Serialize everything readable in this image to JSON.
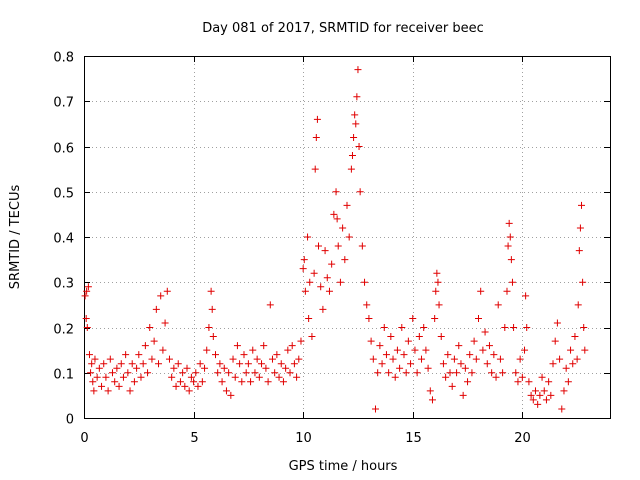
{
  "chart_data": {
    "type": "scatter",
    "title": "Day 081 of 2017, SRMTID for receiver beec",
    "xlabel": "GPS time / hours",
    "ylabel": "SRMTID / TECUs",
    "xlim": [
      0,
      24
    ],
    "ylim": [
      0,
      0.8
    ],
    "xticks": [
      0,
      5,
      10,
      15,
      20
    ],
    "yticks": [
      0,
      0.1,
      0.2,
      0.3,
      0.4,
      0.5,
      0.6,
      0.7,
      0.8
    ],
    "xtick_labels": [
      "0",
      "5",
      "10",
      "15",
      "20"
    ],
    "ytick_labels": [
      "0",
      "0.1",
      "0.2",
      "0.3",
      "0.4",
      "0.5",
      "0.6",
      "0.7",
      "0.8"
    ],
    "grid": true,
    "marker": "+",
    "color": "#e00000",
    "series": [
      {
        "name": "SRMTID",
        "points": [
          [
            0.05,
            0.27
          ],
          [
            0.1,
            0.22
          ],
          [
            0.12,
            0.28
          ],
          [
            0.15,
            0.2
          ],
          [
            0.2,
            0.29
          ],
          [
            0.25,
            0.14
          ],
          [
            0.3,
            0.1
          ],
          [
            0.35,
            0.12
          ],
          [
            0.4,
            0.08
          ],
          [
            0.45,
            0.06
          ],
          [
            0.5,
            0.13
          ],
          [
            0.6,
            0.09
          ],
          [
            0.7,
            0.11
          ],
          [
            0.8,
            0.07
          ],
          [
            0.9,
            0.12
          ],
          [
            1.0,
            0.09
          ],
          [
            1.1,
            0.06
          ],
          [
            1.2,
            0.13
          ],
          [
            1.3,
            0.1
          ],
          [
            1.4,
            0.08
          ],
          [
            1.5,
            0.11
          ],
          [
            1.6,
            0.07
          ],
          [
            1.7,
            0.12
          ],
          [
            1.8,
            0.09
          ],
          [
            1.9,
            0.14
          ],
          [
            2.0,
            0.1
          ],
          [
            2.1,
            0.06
          ],
          [
            2.2,
            0.12
          ],
          [
            2.3,
            0.08
          ],
          [
            2.4,
            0.11
          ],
          [
            2.5,
            0.14
          ],
          [
            2.6,
            0.09
          ],
          [
            2.7,
            0.12
          ],
          [
            2.8,
            0.16
          ],
          [
            2.9,
            0.1
          ],
          [
            3.0,
            0.2
          ],
          [
            3.1,
            0.13
          ],
          [
            3.2,
            0.17
          ],
          [
            3.3,
            0.24
          ],
          [
            3.4,
            0.12
          ],
          [
            3.5,
            0.27
          ],
          [
            3.6,
            0.15
          ],
          [
            3.7,
            0.21
          ],
          [
            3.8,
            0.28
          ],
          [
            3.9,
            0.13
          ],
          [
            4.0,
            0.09
          ],
          [
            4.1,
            0.11
          ],
          [
            4.2,
            0.07
          ],
          [
            4.3,
            0.12
          ],
          [
            4.4,
            0.08
          ],
          [
            4.5,
            0.1
          ],
          [
            4.6,
            0.07
          ],
          [
            4.7,
            0.11
          ],
          [
            4.8,
            0.06
          ],
          [
            4.9,
            0.09
          ],
          [
            5.0,
            0.08
          ],
          [
            5.1,
            0.1
          ],
          [
            5.2,
            0.07
          ],
          [
            5.3,
            0.12
          ],
          [
            5.4,
            0.08
          ],
          [
            5.5,
            0.11
          ],
          [
            5.6,
            0.15
          ],
          [
            5.7,
            0.2
          ],
          [
            5.8,
            0.28
          ],
          [
            5.85,
            0.24
          ],
          [
            5.9,
            0.18
          ],
          [
            6.0,
            0.14
          ],
          [
            6.1,
            0.1
          ],
          [
            6.2,
            0.12
          ],
          [
            6.3,
            0.08
          ],
          [
            6.4,
            0.11
          ],
          [
            6.5,
            0.06
          ],
          [
            6.6,
            0.1
          ],
          [
            6.7,
            0.05
          ],
          [
            6.8,
            0.13
          ],
          [
            6.9,
            0.09
          ],
          [
            7.0,
            0.16
          ],
          [
            7.1,
            0.12
          ],
          [
            7.2,
            0.08
          ],
          [
            7.3,
            0.14
          ],
          [
            7.4,
            0.1
          ],
          [
            7.5,
            0.12
          ],
          [
            7.6,
            0.08
          ],
          [
            7.7,
            0.15
          ],
          [
            7.8,
            0.1
          ],
          [
            7.9,
            0.13
          ],
          [
            8.0,
            0.09
          ],
          [
            8.1,
            0.12
          ],
          [
            8.2,
            0.16
          ],
          [
            8.3,
            0.11
          ],
          [
            8.4,
            0.08
          ],
          [
            8.5,
            0.25
          ],
          [
            8.6,
            0.13
          ],
          [
            8.7,
            0.1
          ],
          [
            8.8,
            0.14
          ],
          [
            8.9,
            0.09
          ],
          [
            9.0,
            0.12
          ],
          [
            9.1,
            0.08
          ],
          [
            9.2,
            0.11
          ],
          [
            9.3,
            0.15
          ],
          [
            9.4,
            0.1
          ],
          [
            9.5,
            0.16
          ],
          [
            9.6,
            0.12
          ],
          [
            9.7,
            0.09
          ],
          [
            9.8,
            0.13
          ],
          [
            9.9,
            0.17
          ],
          [
            10.0,
            0.33
          ],
          [
            10.05,
            0.35
          ],
          [
            10.1,
            0.28
          ],
          [
            10.2,
            0.4
          ],
          [
            10.25,
            0.22
          ],
          [
            10.3,
            0.3
          ],
          [
            10.4,
            0.18
          ],
          [
            10.5,
            0.32
          ],
          [
            10.55,
            0.55
          ],
          [
            10.6,
            0.62
          ],
          [
            10.65,
            0.66
          ],
          [
            10.7,
            0.38
          ],
          [
            10.8,
            0.29
          ],
          [
            10.9,
            0.24
          ],
          [
            11.0,
            0.37
          ],
          [
            11.1,
            0.31
          ],
          [
            11.2,
            0.28
          ],
          [
            11.3,
            0.34
          ],
          [
            11.4,
            0.45
          ],
          [
            11.5,
            0.5
          ],
          [
            11.55,
            0.44
          ],
          [
            11.6,
            0.38
          ],
          [
            11.7,
            0.3
          ],
          [
            11.8,
            0.42
          ],
          [
            11.9,
            0.35
          ],
          [
            12.0,
            0.47
          ],
          [
            12.1,
            0.4
          ],
          [
            12.2,
            0.55
          ],
          [
            12.25,
            0.58
          ],
          [
            12.3,
            0.62
          ],
          [
            12.35,
            0.67
          ],
          [
            12.4,
            0.65
          ],
          [
            12.45,
            0.71
          ],
          [
            12.5,
            0.77
          ],
          [
            12.55,
            0.6
          ],
          [
            12.6,
            0.5
          ],
          [
            12.7,
            0.38
          ],
          [
            12.8,
            0.3
          ],
          [
            12.9,
            0.25
          ],
          [
            13.0,
            0.22
          ],
          [
            13.1,
            0.17
          ],
          [
            13.2,
            0.13
          ],
          [
            13.3,
            0.02
          ],
          [
            13.4,
            0.1
          ],
          [
            13.5,
            0.16
          ],
          [
            13.6,
            0.12
          ],
          [
            13.7,
            0.2
          ],
          [
            13.8,
            0.14
          ],
          [
            13.9,
            0.1
          ],
          [
            14.0,
            0.18
          ],
          [
            14.1,
            0.13
          ],
          [
            14.2,
            0.09
          ],
          [
            14.3,
            0.15
          ],
          [
            14.4,
            0.11
          ],
          [
            14.5,
            0.2
          ],
          [
            14.6,
            0.14
          ],
          [
            14.7,
            0.1
          ],
          [
            14.8,
            0.17
          ],
          [
            14.9,
            0.12
          ],
          [
            15.0,
            0.22
          ],
          [
            15.1,
            0.15
          ],
          [
            15.2,
            0.1
          ],
          [
            15.3,
            0.18
          ],
          [
            15.4,
            0.13
          ],
          [
            15.5,
            0.2
          ],
          [
            15.6,
            0.15
          ],
          [
            15.7,
            0.11
          ],
          [
            15.8,
            0.06
          ],
          [
            15.9,
            0.04
          ],
          [
            16.0,
            0.22
          ],
          [
            16.05,
            0.28
          ],
          [
            16.1,
            0.32
          ],
          [
            16.15,
            0.3
          ],
          [
            16.2,
            0.25
          ],
          [
            16.3,
            0.18
          ],
          [
            16.4,
            0.12
          ],
          [
            16.5,
            0.09
          ],
          [
            16.6,
            0.14
          ],
          [
            16.7,
            0.1
          ],
          [
            16.8,
            0.07
          ],
          [
            16.9,
            0.13
          ],
          [
            17.0,
            0.1
          ],
          [
            17.1,
            0.16
          ],
          [
            17.2,
            0.12
          ],
          [
            17.3,
            0.05
          ],
          [
            17.4,
            0.11
          ],
          [
            17.5,
            0.08
          ],
          [
            17.6,
            0.14
          ],
          [
            17.7,
            0.1
          ],
          [
            17.8,
            0.17
          ],
          [
            17.9,
            0.13
          ],
          [
            18.0,
            0.22
          ],
          [
            18.1,
            0.28
          ],
          [
            18.2,
            0.15
          ],
          [
            18.3,
            0.19
          ],
          [
            18.4,
            0.12
          ],
          [
            18.5,
            0.16
          ],
          [
            18.6,
            0.1
          ],
          [
            18.7,
            0.14
          ],
          [
            18.8,
            0.09
          ],
          [
            18.9,
            0.25
          ],
          [
            19.0,
            0.13
          ],
          [
            19.1,
            0.1
          ],
          [
            19.2,
            0.2
          ],
          [
            19.3,
            0.28
          ],
          [
            19.35,
            0.38
          ],
          [
            19.4,
            0.43
          ],
          [
            19.45,
            0.4
          ],
          [
            19.5,
            0.35
          ],
          [
            19.55,
            0.3
          ],
          [
            19.6,
            0.2
          ],
          [
            19.7,
            0.1
          ],
          [
            19.8,
            0.08
          ],
          [
            19.9,
            0.13
          ],
          [
            20.0,
            0.09
          ],
          [
            20.1,
            0.15
          ],
          [
            20.15,
            0.27
          ],
          [
            20.2,
            0.2
          ],
          [
            20.3,
            0.08
          ],
          [
            20.4,
            0.05
          ],
          [
            20.5,
            0.04
          ],
          [
            20.6,
            0.06
          ],
          [
            20.7,
            0.03
          ],
          [
            20.8,
            0.05
          ],
          [
            20.9,
            0.09
          ],
          [
            21.0,
            0.06
          ],
          [
            21.1,
            0.04
          ],
          [
            21.2,
            0.08
          ],
          [
            21.3,
            0.05
          ],
          [
            21.4,
            0.12
          ],
          [
            21.5,
            0.17
          ],
          [
            21.6,
            0.21
          ],
          [
            21.7,
            0.13
          ],
          [
            21.8,
            0.02
          ],
          [
            21.9,
            0.06
          ],
          [
            22.0,
            0.11
          ],
          [
            22.1,
            0.08
          ],
          [
            22.2,
            0.15
          ],
          [
            22.3,
            0.12
          ],
          [
            22.4,
            0.18
          ],
          [
            22.5,
            0.13
          ],
          [
            22.55,
            0.25
          ],
          [
            22.6,
            0.37
          ],
          [
            22.65,
            0.42
          ],
          [
            22.7,
            0.47
          ],
          [
            22.75,
            0.3
          ],
          [
            22.8,
            0.2
          ],
          [
            22.85,
            0.15
          ]
        ]
      }
    ]
  }
}
